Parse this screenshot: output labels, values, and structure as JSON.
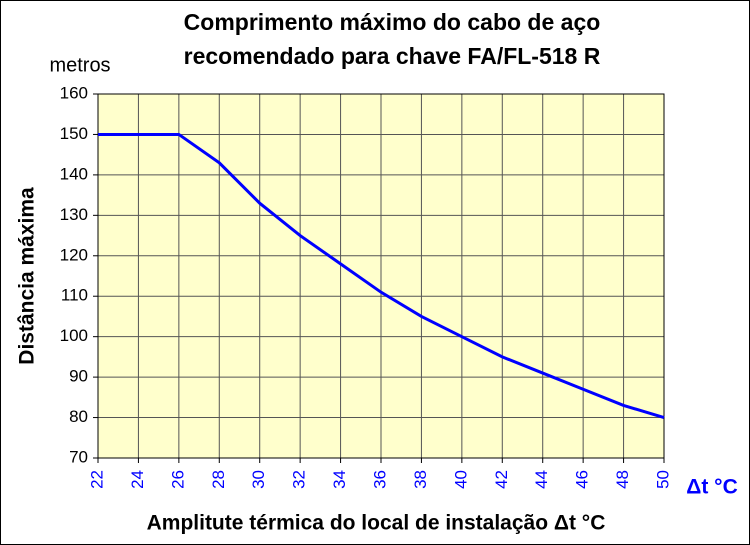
{
  "chart_data": {
    "type": "line",
    "title": [
      "Comprimento máximo do cabo de aço",
      "recomendado para chave FA/FL-518 R"
    ],
    "unit_label": "metros",
    "y_label": "Distância máxima",
    "x_label": "Amplitute térmica do local de instalação Δt   °C",
    "x_unit_label": "Δt °C",
    "x": [
      22,
      24,
      26,
      28,
      30,
      32,
      34,
      36,
      38,
      40,
      42,
      44,
      46,
      48,
      50
    ],
    "series": [
      {
        "name": "Distância máxima",
        "color": "#0000ff",
        "values": [
          150,
          150,
          150,
          143,
          133,
          125,
          118,
          111,
          105,
          100,
          95,
          91,
          87,
          83,
          80
        ]
      }
    ],
    "xlim": [
      22,
      50
    ],
    "xticks": [
      22,
      24,
      26,
      28,
      30,
      32,
      34,
      36,
      38,
      40,
      42,
      44,
      46,
      48,
      50
    ],
    "ylim": [
      70,
      160
    ],
    "yticks": [
      70,
      80,
      90,
      100,
      110,
      120,
      130,
      140,
      150,
      160
    ],
    "grid": true,
    "plot_background": "#ffffcc",
    "x_tick_color": "#0000ff"
  }
}
